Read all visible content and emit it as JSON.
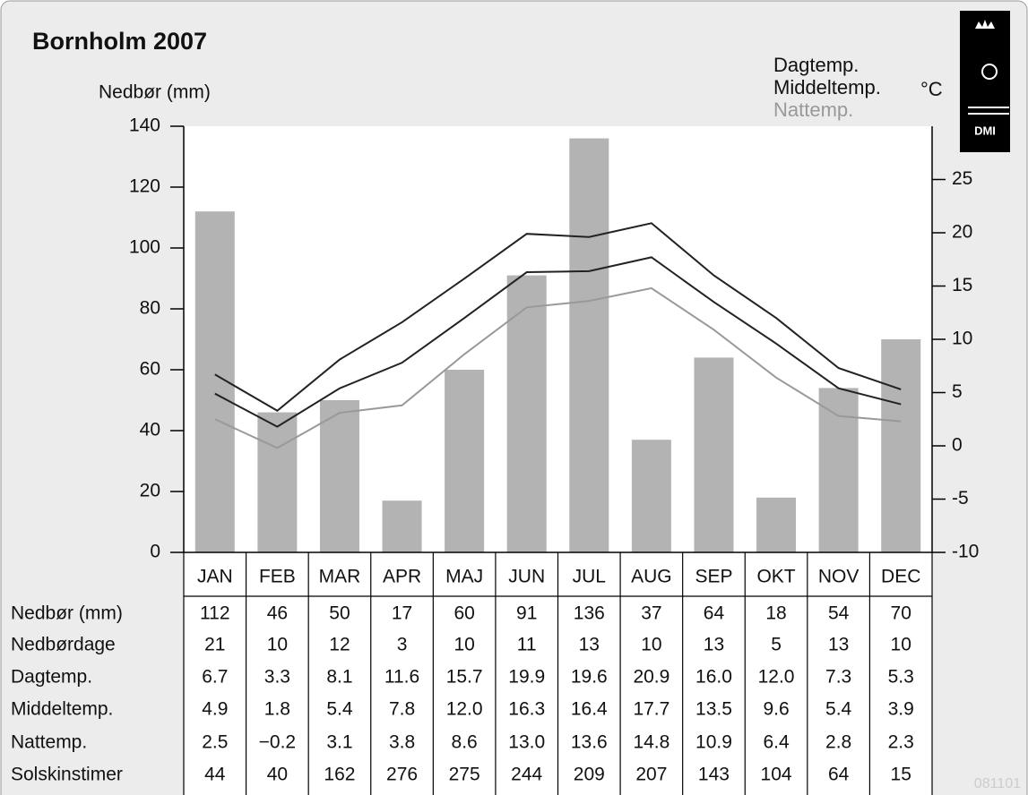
{
  "chart_data": {
    "type": "bar",
    "title": "Bornholm 2007",
    "ylabel": "Nedbør (mm)",
    "y2label": "°C",
    "logo": "DMI",
    "code": "081101",
    "categories": [
      "JAN",
      "FEB",
      "MAR",
      "APR",
      "MAJ",
      "JUN",
      "JUL",
      "AUG",
      "SEP",
      "OKT",
      "NOV",
      "DEC"
    ],
    "ylim": [
      0,
      140
    ],
    "yticks": [
      0,
      20,
      40,
      60,
      80,
      100,
      120,
      140
    ],
    "y2lim": [
      -10,
      30
    ],
    "y2ticks": [
      -10,
      -5,
      0,
      5,
      10,
      15,
      20,
      25
    ],
    "series": [
      {
        "name": "Nedbør (mm)",
        "color": "#b3b3b3",
        "values": [
          112,
          46,
          50,
          17,
          60,
          91,
          136,
          37,
          64,
          18,
          54,
          70
        ]
      },
      {
        "name": "Dagtemp.",
        "color": "#222222",
        "axis": "y2",
        "values": [
          6.7,
          3.3,
          8.1,
          11.6,
          15.7,
          19.9,
          19.6,
          20.9,
          16.0,
          12.0,
          7.3,
          5.3
        ],
        "value_labels": [
          "6.7",
          "3.3",
          "8.1",
          "11.6",
          "15.7",
          "19.9",
          "19.6",
          "20.9",
          "16.0",
          "12.0",
          "7.3",
          "5.3"
        ]
      },
      {
        "name": "Middeltemp.",
        "color": "#222222",
        "axis": "y2",
        "values": [
          4.9,
          1.8,
          5.4,
          7.8,
          12.0,
          16.3,
          16.4,
          17.7,
          13.5,
          9.6,
          5.4,
          3.9
        ],
        "value_labels": [
          "4.9",
          "1.8",
          "5.4",
          "7.8",
          "12.0",
          "16.3",
          "16.4",
          "17.7",
          "13.5",
          "9.6",
          "5.4",
          "3.9"
        ]
      },
      {
        "name": "Nattemp.",
        "color": "#999999",
        "axis": "y2",
        "values": [
          2.5,
          -0.2,
          3.1,
          3.8,
          8.6,
          13.0,
          13.6,
          14.8,
          10.9,
          6.4,
          2.8,
          2.3
        ],
        "value_labels": [
          "2.5",
          "−0.2",
          "3.1",
          "3.8",
          "8.6",
          "13.0",
          "13.6",
          "14.8",
          "10.9",
          "6.4",
          "2.8",
          "2.3"
        ]
      }
    ],
    "table_rows": [
      {
        "name": "Nedbørdage",
        "values": [
          21,
          10,
          12,
          3,
          10,
          11,
          13,
          10,
          13,
          5,
          13,
          10
        ]
      },
      {
        "name": "Solskinstimer",
        "values": [
          44,
          40,
          162,
          276,
          275,
          244,
          209,
          207,
          143,
          104,
          64,
          15
        ]
      }
    ]
  }
}
